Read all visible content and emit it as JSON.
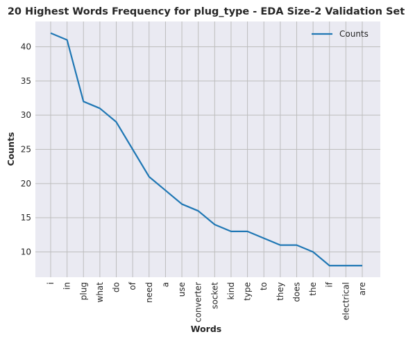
{
  "chart_data": {
    "type": "line",
    "title": "20 Highest Words Frequency for plug_type - EDA Size-2 Validation Set",
    "xlabel": "Words",
    "ylabel": "Counts",
    "categories": [
      "i",
      "in",
      "plug",
      "what",
      "do",
      "of",
      "need",
      "a",
      "use",
      "converter",
      "socket",
      "kind",
      "type",
      "to",
      "they",
      "does",
      "the",
      "if",
      "electrical",
      "are"
    ],
    "series": [
      {
        "name": "Counts",
        "values": [
          42,
          41,
          32,
          31,
          29,
          25,
          21,
          19,
          17,
          16,
          14,
          13,
          13,
          12,
          11,
          11,
          10,
          8,
          8,
          8
        ],
        "color": "#1f77b4"
      }
    ],
    "yticks": [
      10,
      15,
      20,
      25,
      30,
      35,
      40
    ],
    "ylim": [
      6.3,
      43.7
    ],
    "grid": true,
    "legend_position": "top-right",
    "background": "#eaeaf2",
    "grid_color": "#bdbdbd"
  }
}
